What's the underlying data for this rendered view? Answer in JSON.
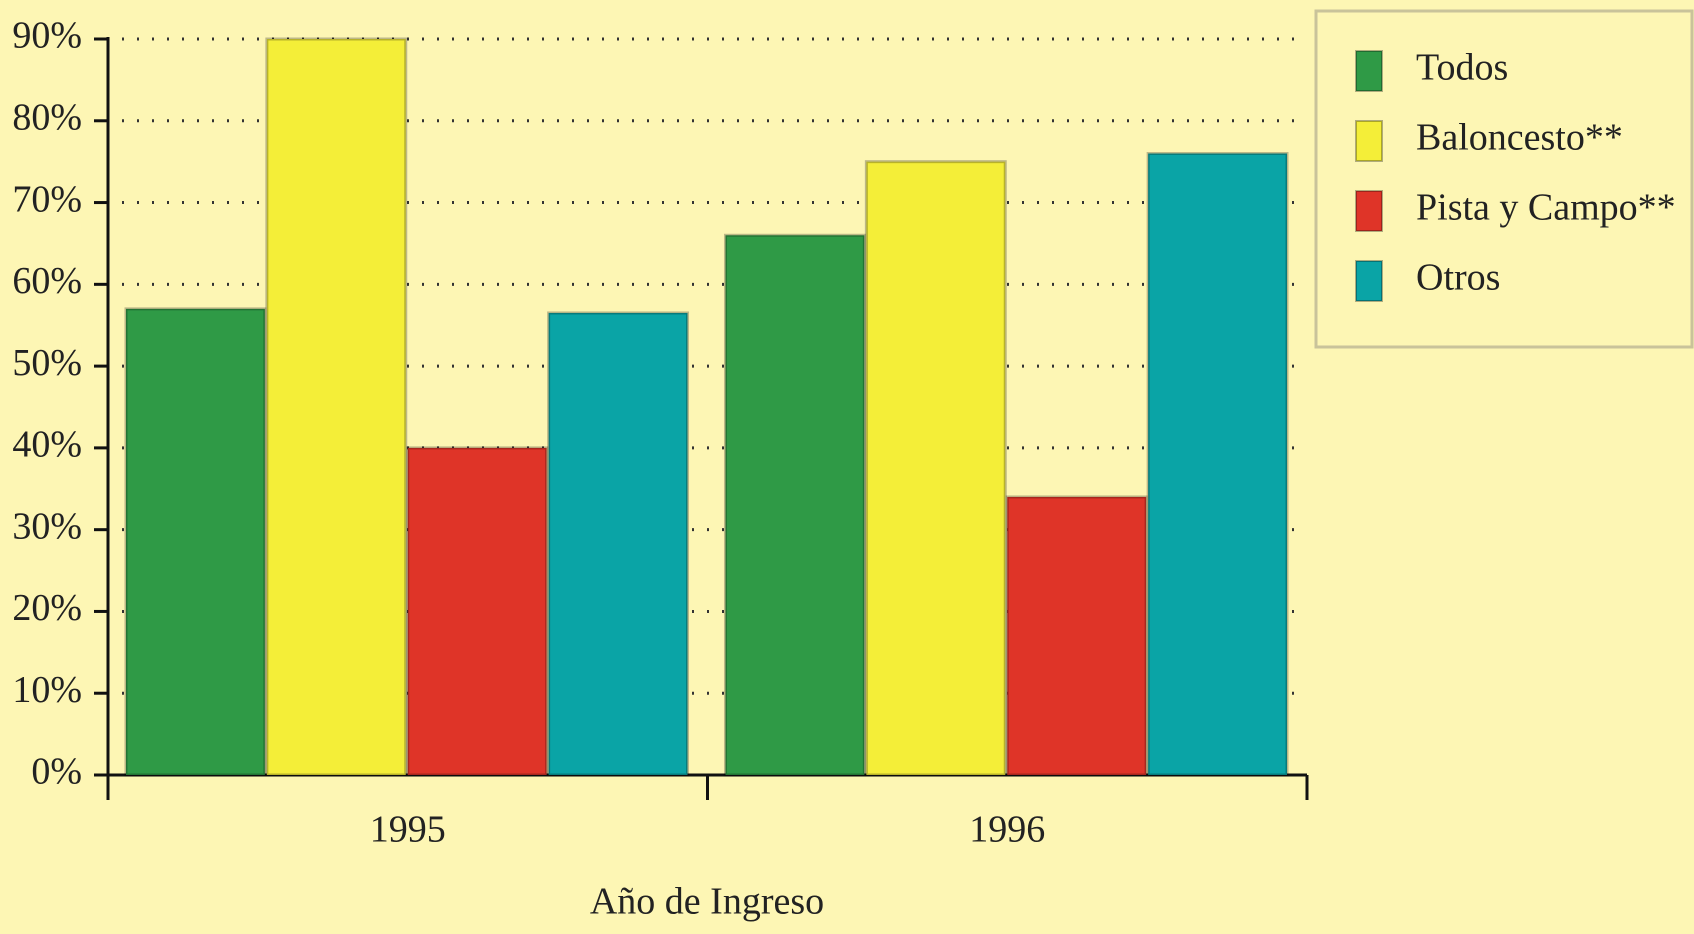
{
  "chart_data": {
    "type": "bar",
    "x_label": "Año de Ingreso",
    "categories": [
      "1995",
      "1996"
    ],
    "series": [
      {
        "name": "Todos",
        "color": "#2f9a46",
        "values": [
          57,
          66
        ]
      },
      {
        "name": "Baloncesto**",
        "color": "#f4ee38",
        "values": [
          90,
          75
        ]
      },
      {
        "name": "Pista y Campo**",
        "color": "#df3428",
        "values": [
          40,
          34
        ]
      },
      {
        "name": "Otros",
        "color": "#0aa4a6",
        "values": [
          56.5,
          76
        ]
      }
    ],
    "ylim": [
      0,
      90
    ],
    "yticks": [
      {
        "value": 0,
        "label": "0%"
      },
      {
        "value": 10,
        "label": "10%"
      },
      {
        "value": 20,
        "label": "20%"
      },
      {
        "value": 30,
        "label": "30%"
      },
      {
        "value": 40,
        "label": "40%"
      },
      {
        "value": 50,
        "label": "50%"
      },
      {
        "value": 60,
        "label": "60%"
      },
      {
        "value": 70,
        "label": "70%"
      },
      {
        "value": 80,
        "label": "80%"
      },
      {
        "value": 90,
        "label": "90%"
      }
    ],
    "grid": true,
    "legend": "top-right"
  }
}
